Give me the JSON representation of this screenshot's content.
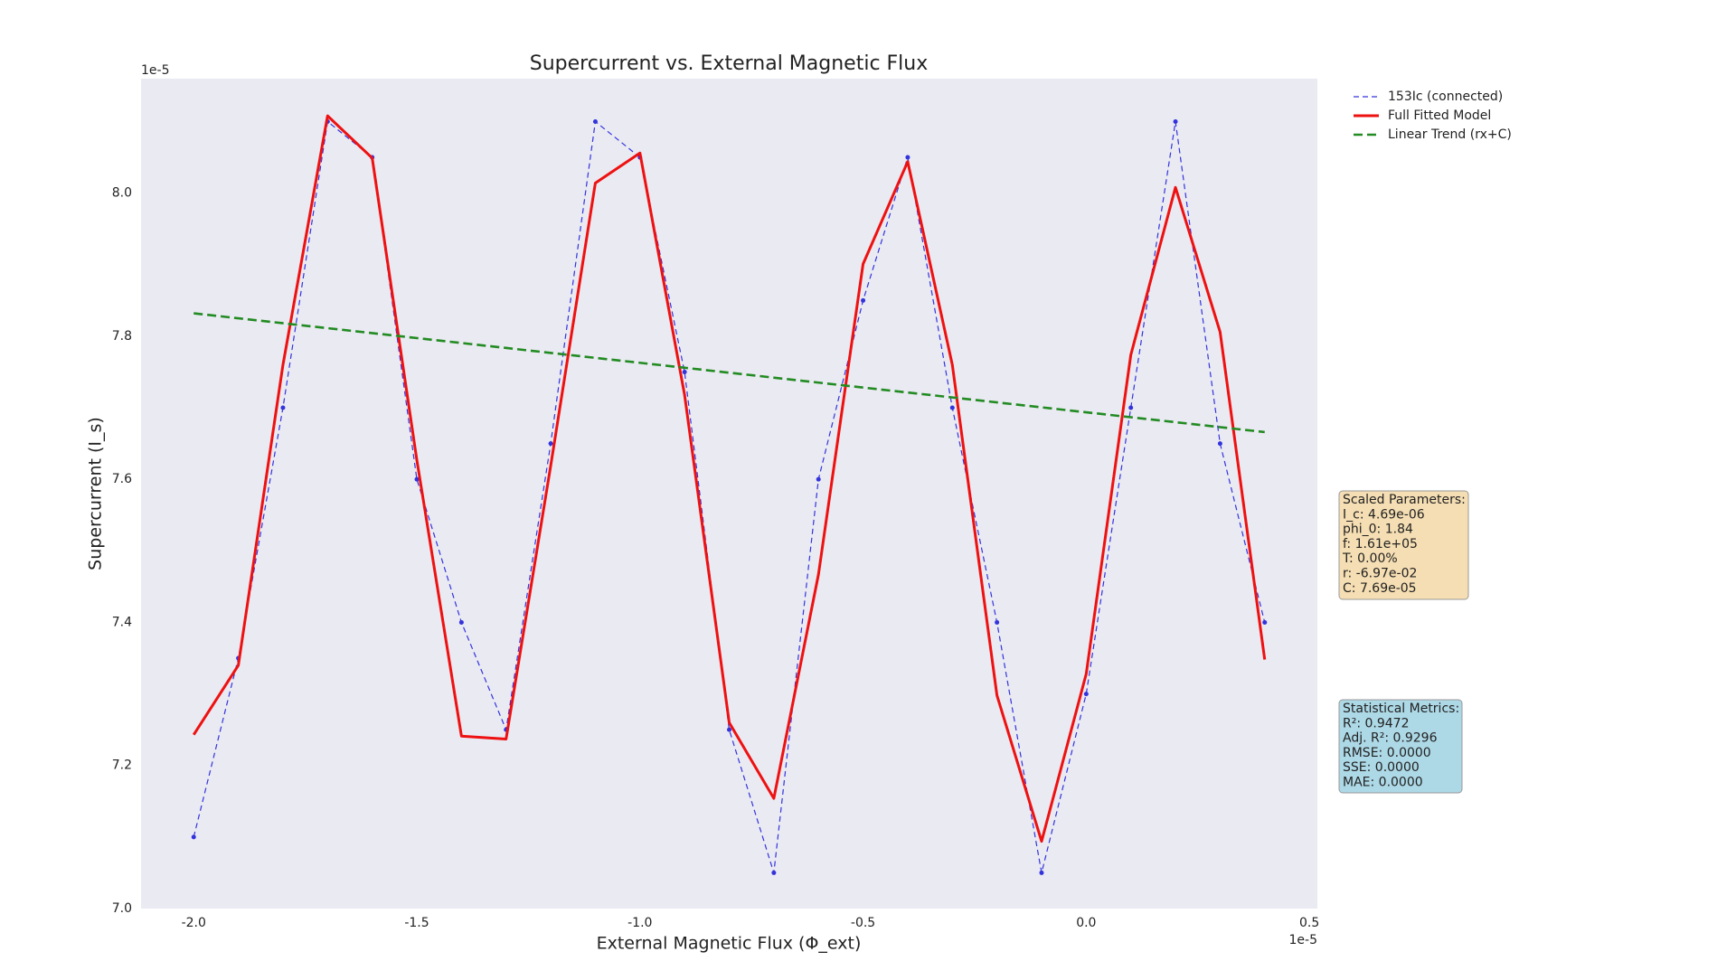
{
  "chart_data": {
    "type": "line",
    "title": "Supercurrent vs. External Magnetic Flux",
    "x_label": "External Magnetic Flux (Φ_ext)",
    "y_label": "Supercurrent (I_s)",
    "x_offset_label": "1e-5",
    "y_offset_label": "1e-5",
    "background": "#eaeaf2",
    "grid": false,
    "legend_position": "outside-upper-right",
    "xlim": [
      -2.118,
      0.518
    ],
    "ylim": [
      7.0,
      8.16
    ],
    "xticks": [
      {
        "value": -2,
        "label": "-2.0"
      },
      -1.5,
      {
        "value": -1,
        "label": "-1.0"
      },
      -0.5,
      {
        "value": 0,
        "label": "0.0"
      },
      0.5
    ],
    "yticks": [
      {
        "value": 7,
        "label": "7.0"
      },
      7.2,
      7.4,
      7.6,
      7.8,
      {
        "value": 8,
        "label": "8.0"
      }
    ],
    "series": [
      {
        "name": "153Ic (connected)",
        "color": "#3333dd",
        "style": "dashed-markers",
        "x": [
          -2.0,
          -1.9,
          -1.8,
          -1.7,
          -1.6,
          -1.5,
          -1.4,
          -1.3,
          -1.2,
          -1.1,
          -1.0,
          -0.9,
          -0.8,
          -0.7,
          -0.6,
          -0.5,
          -0.4,
          -0.3,
          -0.2,
          -0.1,
          0.0,
          0.1,
          0.2,
          0.3,
          0.4
        ],
        "values": [
          7.1,
          7.35,
          7.7,
          8.1,
          8.05,
          7.6,
          7.4,
          7.25,
          7.65,
          8.1,
          8.05,
          7.75,
          7.25,
          7.05,
          7.6,
          7.85,
          8.05,
          7.7,
          7.4,
          7.05,
          7.3,
          7.7,
          8.1,
          7.65,
          7.4
        ]
      },
      {
        "name": "Full Fitted Model",
        "color": "#ee1111",
        "style": "solid",
        "x": [
          -2.0,
          -1.9,
          -1.8,
          -1.7,
          -1.6,
          -1.5,
          -1.4,
          -1.3,
          -1.2,
          -1.1,
          -1.0,
          -0.9,
          -0.8,
          -0.7,
          -0.6,
          -0.5,
          -0.4,
          -0.3,
          -0.2,
          -0.1,
          0.0,
          0.1,
          0.2,
          0.3,
          0.4
        ],
        "values": [
          7.243,
          7.34,
          7.76,
          8.108,
          8.049,
          7.627,
          7.241,
          7.237,
          7.619,
          8.014,
          8.056,
          7.718,
          7.26,
          7.154,
          7.467,
          7.901,
          8.044,
          7.76,
          7.298,
          7.094,
          7.328,
          7.774,
          8.008,
          7.806,
          7.348
        ]
      },
      {
        "name": "Linear Trend (rx+C)",
        "color": "#228b22",
        "style": "dashed",
        "x": [
          -2.0,
          0.4
        ],
        "values": [
          7.832,
          7.666
        ]
      }
    ],
    "annotations": [
      {
        "lines": [
          "Scaled Parameters:",
          "I_c: 4.69e-06",
          "phi_0: 1.84",
          "f: 1.61e+05",
          "T: 0.00%",
          "r: -6.97e-02",
          "C: 7.69e-05"
        ],
        "color": "#f5deb3"
      },
      {
        "lines": [
          "Statistical Metrics:",
          "R²: 0.9472",
          "Adj. R²: 0.9296",
          "RMSE: 0.0000",
          "SSE: 0.0000",
          "MAE: 0.0000"
        ],
        "color": "#add8e6"
      }
    ]
  }
}
